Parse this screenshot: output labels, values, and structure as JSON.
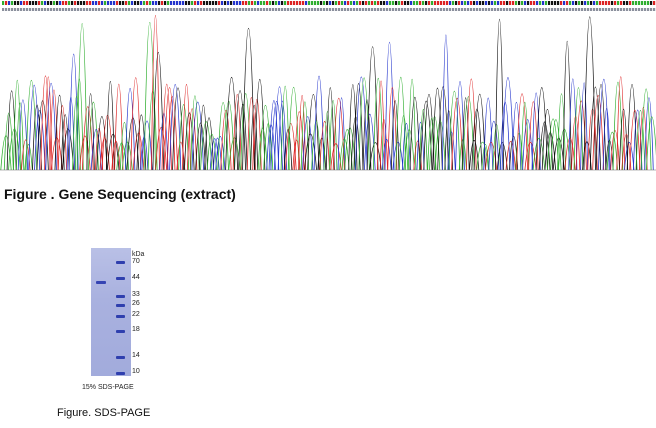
{
  "sequencing": {
    "base_colors": {
      "A": "#2fae2f",
      "C": "#2233cc",
      "G": "#111111",
      "T": "#dd2222"
    },
    "caption": "Figure . Gene Sequencing (extract)"
  },
  "gel": {
    "units": "kDa",
    "markers": [
      "70",
      "44",
      "33",
      "26",
      "22",
      "18",
      "14",
      "10"
    ],
    "gel_label": "15% SDS-PAGE",
    "caption": "Figure. SDS-PAGE",
    "colors": {
      "gel": "#a9b1df",
      "band": "#2f3fae"
    }
  }
}
